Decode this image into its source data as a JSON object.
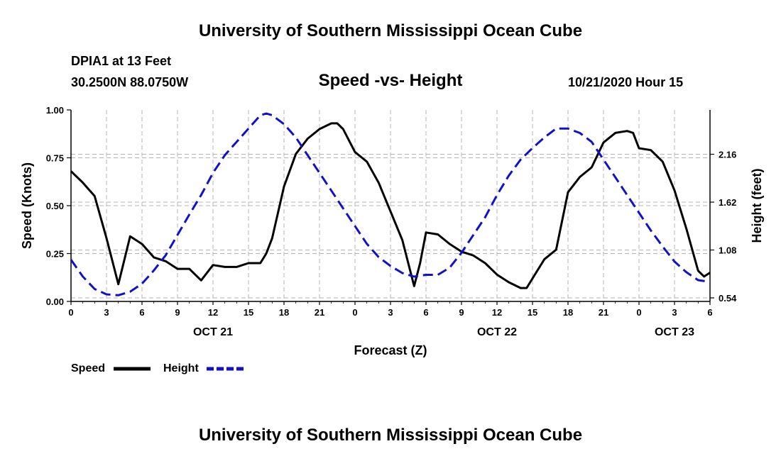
{
  "header": {
    "top_title": "University of Southern Mississippi Ocean Cube",
    "station": "DPIA1 at 13 Feet",
    "coords": "30.2500N 88.0750W",
    "chart_title": "Speed -vs- Height",
    "timestamp": "10/21/2020 Hour 15",
    "bottom_title": "University of Southern Mississippi Ocean Cube"
  },
  "colors": {
    "speed": "#000000",
    "height": "#1111cc",
    "grid": "#b4b4b4"
  },
  "legend": {
    "speed_label": "Speed",
    "height_label": "Height"
  },
  "chart_data": {
    "type": "line",
    "title": "Speed -vs- Height",
    "xlabel": "Forecast (Z)",
    "ylabel": "Speed (Knots)",
    "ylabel_right": "Height (feet)",
    "xlim": [
      0,
      54
    ],
    "ylim": [
      0,
      1.0
    ],
    "ylim_right": [
      0.5,
      2.66
    ],
    "x_ticks": [
      0,
      3,
      6,
      9,
      12,
      15,
      18,
      21,
      24,
      27,
      30,
      33,
      36,
      39,
      42,
      45,
      48,
      51,
      54
    ],
    "x_tick_labels": [
      "0",
      "3",
      "6",
      "9",
      "12",
      "15",
      "18",
      "21",
      "0",
      "3",
      "6",
      "9",
      "12",
      "15",
      "18",
      "21",
      "0",
      "3",
      "6"
    ],
    "date_labels": [
      {
        "x": 12,
        "label": "OCT 21"
      },
      {
        "x": 36,
        "label": "OCT 22"
      },
      {
        "x": 51,
        "label": "OCT 23"
      }
    ],
    "y_ticks": [
      0,
      0.25,
      0.5,
      0.75,
      1.0
    ],
    "y_tick_labels": [
      "0.00",
      "0.25",
      "0.50",
      "0.75",
      "1.00"
    ],
    "y_ticks_right": [
      0.54,
      1.08,
      1.62,
      2.16
    ],
    "y_tick_labels_right": [
      "0.54",
      "1.08",
      "1.62",
      "2.16"
    ],
    "grid": true,
    "legend_position": "bottom-left",
    "series": [
      {
        "name": "Speed",
        "axis": "left",
        "style": "solid",
        "x": [
          0,
          1,
          2,
          3,
          4,
          5,
          6,
          7,
          8,
          9,
          10,
          11,
          12,
          13,
          14,
          15,
          16,
          16.5,
          17,
          18,
          19,
          20,
          21,
          22,
          22.5,
          23,
          24,
          25,
          26,
          27,
          28,
          29,
          29.5,
          30,
          31,
          32,
          33,
          34,
          35,
          36,
          37,
          38,
          38.5,
          39,
          40,
          41,
          42,
          43,
          44,
          45,
          46,
          47,
          47.5,
          48,
          49,
          50,
          51,
          52,
          53,
          53.5,
          54
        ],
        "y": [
          0.68,
          0.62,
          0.55,
          0.33,
          0.09,
          0.34,
          0.3,
          0.23,
          0.21,
          0.17,
          0.17,
          0.11,
          0.19,
          0.18,
          0.18,
          0.2,
          0.2,
          0.25,
          0.33,
          0.6,
          0.77,
          0.85,
          0.9,
          0.93,
          0.93,
          0.9,
          0.78,
          0.73,
          0.62,
          0.47,
          0.32,
          0.08,
          0.2,
          0.36,
          0.35,
          0.3,
          0.26,
          0.24,
          0.2,
          0.14,
          0.1,
          0.07,
          0.07,
          0.12,
          0.22,
          0.27,
          0.57,
          0.65,
          0.7,
          0.83,
          0.88,
          0.89,
          0.88,
          0.8,
          0.79,
          0.73,
          0.58,
          0.38,
          0.16,
          0.13,
          0.15
        ]
      },
      {
        "name": "Height",
        "axis": "right",
        "style": "dashed",
        "x": [
          0,
          1,
          2,
          3,
          4,
          5,
          6,
          7,
          8,
          9,
          10,
          11,
          12,
          13,
          14,
          15,
          16,
          16.5,
          17,
          18,
          19,
          20,
          21,
          22,
          23,
          24,
          25,
          26,
          27,
          28,
          29,
          30,
          31,
          32,
          33,
          34,
          35,
          36,
          37,
          38,
          39,
          40,
          41,
          42,
          43,
          44,
          45,
          46,
          47,
          48,
          49,
          50,
          51,
          52,
          53,
          54
        ],
        "y": [
          0.97,
          0.78,
          0.64,
          0.58,
          0.57,
          0.61,
          0.7,
          0.85,
          1.02,
          1.25,
          1.48,
          1.7,
          1.95,
          2.15,
          2.3,
          2.45,
          2.6,
          2.62,
          2.6,
          2.5,
          2.35,
          2.15,
          1.95,
          1.75,
          1.55,
          1.35,
          1.15,
          1.0,
          0.9,
          0.82,
          0.78,
          0.8,
          0.8,
          0.88,
          1.05,
          1.25,
          1.45,
          1.7,
          1.92,
          2.1,
          2.23,
          2.35,
          2.45,
          2.45,
          2.4,
          2.3,
          2.1,
          1.9,
          1.7,
          1.5,
          1.3,
          1.12,
          0.95,
          0.83,
          0.74,
          0.72
        ]
      }
    ]
  }
}
